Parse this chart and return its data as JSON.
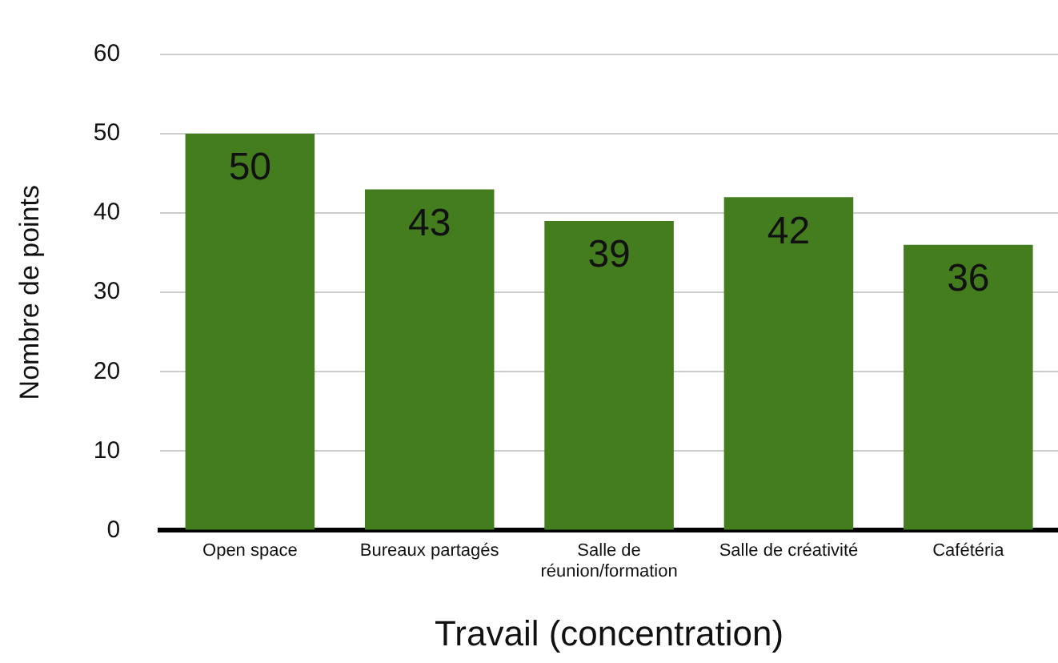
{
  "chart_data": {
    "type": "bar",
    "xlabel": "Travail (concentration)",
    "ylabel": "Nombre de points",
    "categories": [
      "Open space",
      "Bureaux partagés",
      "Salle de réunion/formation",
      "Salle de créativité",
      "Cafétéria"
    ],
    "values": [
      50,
      43,
      39,
      42,
      36
    ],
    "color": "#437d1e",
    "ylim": [
      0,
      60
    ],
    "yticks": [
      0,
      10,
      20,
      30,
      40,
      50,
      60
    ],
    "grid": "y",
    "data_labels": true,
    "legend": false
  }
}
